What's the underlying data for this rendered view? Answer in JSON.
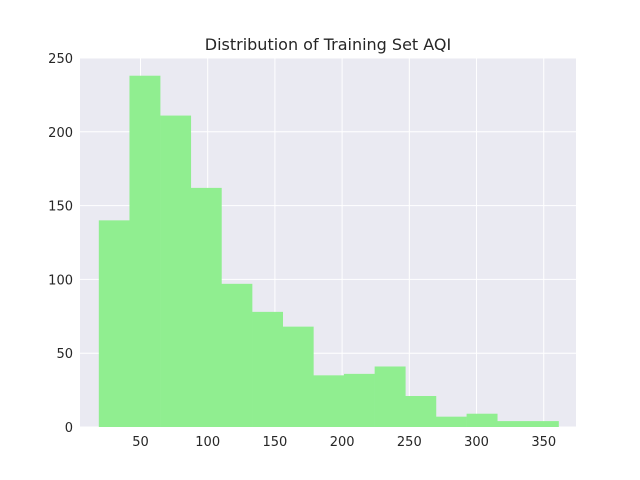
{
  "chart_data": {
    "type": "bar",
    "title": "Distribution of Training Set AQI",
    "xlabel": "",
    "ylabel": "",
    "bin_edges": [
      19,
      41.8,
      64.6,
      87.4,
      110.2,
      133,
      155.8,
      178.6,
      201.4,
      224.2,
      247,
      269.8,
      292.6,
      315.4,
      338.2,
      361
    ],
    "values": [
      140,
      238,
      211,
      162,
      97,
      78,
      68,
      35,
      36,
      41,
      21,
      7,
      9,
      4,
      4
    ],
    "xlim": [
      5,
      374
    ],
    "ylim": [
      0,
      250
    ],
    "xticks": [
      50,
      100,
      150,
      200,
      250,
      300,
      350
    ],
    "yticks": [
      0,
      50,
      100,
      150,
      200,
      250
    ],
    "bar_color": "#90ee90",
    "background_color": "#eaeaf2",
    "grid": true,
    "grid_color": "#ffffff"
  }
}
